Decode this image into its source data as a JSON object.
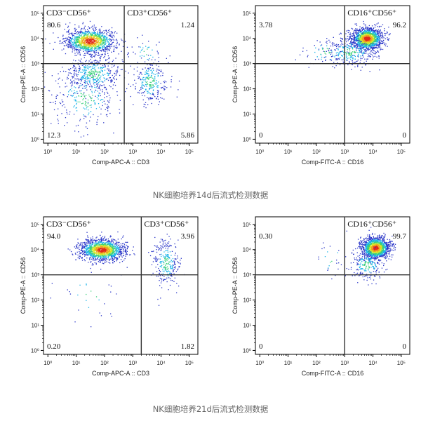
{
  "captions": [
    "NK细胞培养14d后流式检测数据",
    "NK细胞培养21d后流式检测数据"
  ],
  "palette": {
    "low": "#2a36c8",
    "mid1": "#19b4e8",
    "mid2": "#3ad07a",
    "mid3": "#d6e62a",
    "high": "#f0a020",
    "peak": "#e02a1a",
    "axis": "#000000",
    "quad": "#333333"
  },
  "chart_data": [
    {
      "type": "scatter",
      "xlabel": "Comp-APC-A :: CD3",
      "ylabel": "Comp-PE-A :: CD56",
      "x_scale": "log",
      "y_scale": "log",
      "xlim": [
        0.7,
        200000
      ],
      "ylim": [
        0.7,
        200000
      ],
      "x_ticks": [
        "10⁰",
        "10¹",
        "10²",
        "10³",
        "10⁴",
        "10⁵"
      ],
      "y_ticks": [
        "10⁰",
        "10¹",
        "10²",
        "10³",
        "10⁴",
        "10⁵"
      ],
      "gate_x": 500,
      "gate_y": 1000,
      "quadrant_labels": {
        "tl": "CD3⁻CD56⁺",
        "tr": "CD3⁺CD56⁺"
      },
      "quadrants": {
        "tl": "80.6",
        "tr": "1.24",
        "bl": "12.3",
        "br": "5.86"
      },
      "populations": [
        {
          "cx": 30,
          "cy": 8000,
          "sx": 0.45,
          "sy": 0.25,
          "n": 1200
        },
        {
          "cx": 40,
          "cy": 400,
          "sx": 0.5,
          "sy": 0.35,
          "n": 450
        },
        {
          "cx": 20,
          "cy": 40,
          "sx": 0.6,
          "sy": 0.6,
          "n": 250
        },
        {
          "cx": 4000,
          "cy": 200,
          "sx": 0.3,
          "sy": 0.45,
          "n": 260
        },
        {
          "cx": 3000,
          "cy": 3000,
          "sx": 0.3,
          "sy": 0.3,
          "n": 40
        }
      ]
    },
    {
      "type": "scatter",
      "xlabel": "Comp-FITC-A :: CD16",
      "ylabel": "Comp-PE-A :: CD56",
      "x_scale": "log",
      "y_scale": "log",
      "xlim": [
        0.7,
        200000
      ],
      "ylim": [
        0.7,
        200000
      ],
      "x_ticks": [
        "10⁰",
        "10¹",
        "10²",
        "10³",
        "10⁴",
        "10⁵"
      ],
      "y_ticks": [
        "10⁰",
        "10¹",
        "10²",
        "10³",
        "10⁴",
        "10⁵"
      ],
      "gate_x": 1000,
      "gate_y": 1000,
      "quadrant_labels": {
        "tl": "",
        "tr": "CD16⁺CD56⁺"
      },
      "quadrants": {
        "tl": "3.78",
        "tr": "96.2",
        "bl": "0",
        "br": "0"
      },
      "populations": [
        {
          "cx": 6000,
          "cy": 10000,
          "sx": 0.28,
          "sy": 0.22,
          "n": 1400
        },
        {
          "cx": 1500,
          "cy": 3000,
          "sx": 0.45,
          "sy": 0.3,
          "n": 300
        },
        {
          "cx": 200,
          "cy": 3000,
          "sx": 0.4,
          "sy": 0.3,
          "n": 60
        }
      ]
    },
    {
      "type": "scatter",
      "xlabel": "Comp-APC-A :: CD3",
      "ylabel": "Comp-PE-A :: CD56",
      "x_scale": "log",
      "y_scale": "log",
      "xlim": [
        0.7,
        200000
      ],
      "ylim": [
        0.7,
        200000
      ],
      "x_ticks": [
        "10⁰",
        "10¹",
        "10²",
        "10³",
        "10⁴",
        "10⁵"
      ],
      "y_ticks": [
        "10⁰",
        "10¹",
        "10²",
        "10³",
        "10⁴",
        "10⁵"
      ],
      "gate_x": 2000,
      "gate_y": 1000,
      "quadrant_labels": {
        "tl": "CD3⁻CD56⁺",
        "tr": "CD3⁺CD56⁺"
      },
      "quadrants": {
        "tl": "94.0",
        "tr": "3.96",
        "bl": "0.20",
        "br": "1.82"
      },
      "populations": [
        {
          "cx": 80,
          "cy": 10000,
          "sx": 0.4,
          "sy": 0.22,
          "n": 1400
        },
        {
          "cx": 15000,
          "cy": 3000,
          "sx": 0.22,
          "sy": 0.5,
          "n": 280
        },
        {
          "cx": 30,
          "cy": 200,
          "sx": 0.6,
          "sy": 0.6,
          "n": 30
        }
      ]
    },
    {
      "type": "scatter",
      "xlabel": "Comp-FITC-A :: CD16",
      "ylabel": "Comp-PE-A :: CD56",
      "x_scale": "log",
      "y_scale": "log",
      "xlim": [
        0.7,
        200000
      ],
      "ylim": [
        0.7,
        200000
      ],
      "x_ticks": [
        "10⁰",
        "10¹",
        "10²",
        "10³",
        "10⁴",
        "10⁵"
      ],
      "y_ticks": [
        "10⁰",
        "10¹",
        "10²",
        "10³",
        "10⁴",
        "10⁵"
      ],
      "gate_x": 1000,
      "gate_y": 1000,
      "quadrant_labels": {
        "tl": "",
        "tr": "CD16⁺CD56⁺"
      },
      "quadrants": {
        "tl": "0.30",
        "tr": "99.7",
        "bl": "0",
        "br": "0"
      },
      "populations": [
        {
          "cx": 12000,
          "cy": 12000,
          "sx": 0.25,
          "sy": 0.22,
          "n": 1400
        },
        {
          "cx": 6000,
          "cy": 2500,
          "sx": 0.3,
          "sy": 0.3,
          "n": 200
        },
        {
          "cx": 300,
          "cy": 5000,
          "sx": 0.3,
          "sy": 0.4,
          "n": 25
        }
      ]
    }
  ]
}
